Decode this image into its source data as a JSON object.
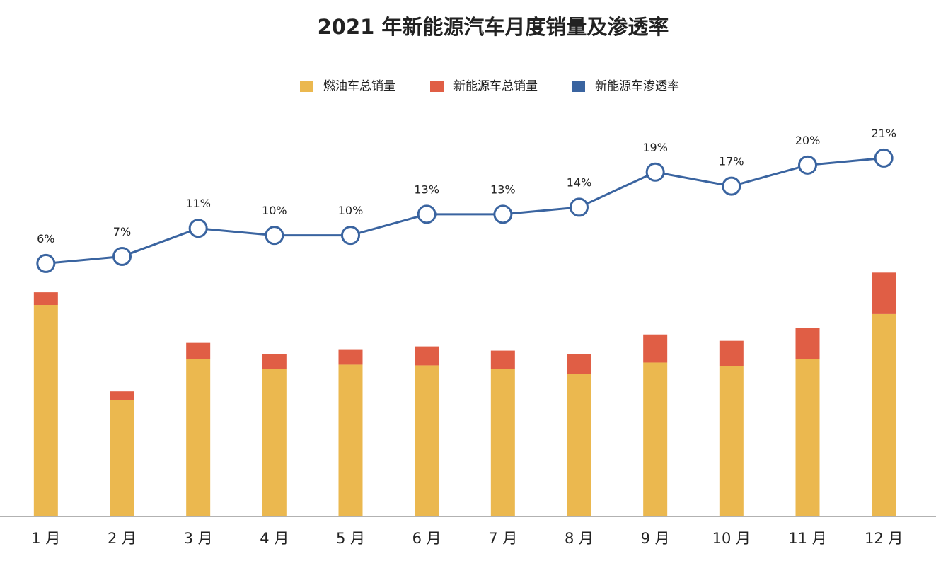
{
  "chart_data": {
    "type": "bar-line",
    "title": "2021 年新能源汽车月度销量及渗透率",
    "categories": [
      "1 月",
      "2 月",
      "3 月",
      "4 月",
      "5 月",
      "6 月",
      "7 月",
      "8 月",
      "9 月",
      "10 月",
      "11 月",
      "12 月"
    ],
    "series": [
      {
        "name": "燃油车总销量",
        "type": "bar",
        "color": "#ebb84f",
        "values": [
          301,
          166,
          224,
          210,
          216,
          215,
          210,
          203,
          219,
          214,
          224,
          288
        ]
      },
      {
        "name": "新能源车总销量",
        "type": "bar",
        "color": "#e05e45",
        "values": [
          18,
          12,
          23,
          21,
          22,
          27,
          26,
          28,
          40,
          36,
          44,
          59
        ]
      },
      {
        "name": "新能源车渗透率",
        "type": "line",
        "axis": "y2",
        "color": "#3a64a0",
        "values": [
          6,
          7,
          11,
          10,
          10,
          13,
          13,
          14,
          19,
          17,
          20,
          21
        ],
        "value_labels": [
          "6%",
          "7%",
          "11%",
          "10%",
          "10%",
          "13%",
          "13%",
          "14%",
          "19%",
          "17%",
          "20%",
          "21%"
        ]
      }
    ],
    "ylim": [
      0,
      600
    ],
    "y2lim": [
      -30,
      30
    ],
    "legend": "top"
  }
}
